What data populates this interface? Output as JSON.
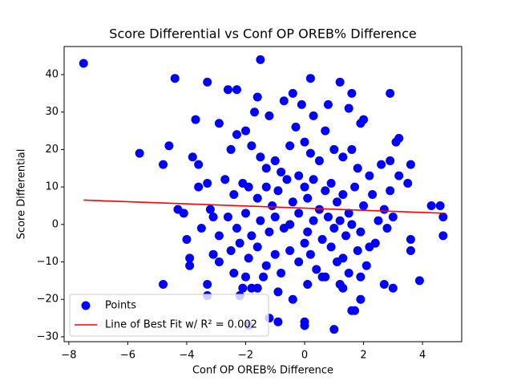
{
  "chart_data": {
    "type": "scatter",
    "title": "Score Differential vs Conf OP OREB% Difference",
    "xlabel": "Conf OP OREB% Difference",
    "ylabel": "Score Differential",
    "xlim": [
      -8.16,
      5.33
    ],
    "ylim": [
      -31.3,
      47.5
    ],
    "xticks": [
      {
        "value": -8,
        "label": "−8"
      },
      {
        "value": -6,
        "label": "−6"
      },
      {
        "value": -4,
        "label": "−4"
      },
      {
        "value": -2,
        "label": "−2"
      },
      0,
      2,
      4
    ],
    "yticks": [
      {
        "value": -30,
        "label": "−30"
      },
      {
        "value": -20,
        "label": "−20"
      },
      {
        "value": -10,
        "label": "−10"
      },
      0,
      10,
      20,
      30,
      40
    ],
    "legend": "lower left",
    "series": [
      {
        "name": "Points",
        "type": "scatter",
        "color": "#0000ff",
        "x": [
          -7.5,
          -1.5,
          -4.4,
          -3.3,
          0.2,
          1.2,
          2.9,
          -5.6,
          -4.8,
          -4.6,
          -4.8,
          -4.3,
          -4.1,
          -4,
          -3.9,
          -3.9,
          -3.3,
          -3.3,
          -2.2,
          -1.9,
          -1.2,
          -0.9,
          0,
          0,
          1,
          1.6,
          1.7,
          1.9,
          1.3,
          4.7,
          4.7,
          4.6,
          4.3,
          3.9,
          3.6,
          3.6,
          3.6,
          3.5,
          3.2,
          3.1,
          2.9,
          -3.7,
          -3.6,
          -3.8,
          -2.9,
          -2.6,
          -2.3,
          -1.6,
          -1.2,
          -0.4,
          -0.7,
          1.6,
          1.5,
          0.8,
          1.9,
          2.0,
          -3.3,
          -3.6,
          -3.2,
          -3.1,
          -2.9,
          -2.9,
          -3.1,
          -2.4,
          -2.1,
          -1.8,
          -1.6,
          -2.5,
          -2.3,
          -2,
          -1.8,
          -1.5,
          -1.3,
          -1,
          -0.8,
          -0.5,
          -0.3,
          0,
          0.2,
          0.5,
          0.7,
          1,
          1.3,
          1.6,
          1.8,
          2.2,
          2.6,
          -2.7,
          -2.4,
          -2.1,
          -1.9,
          -1.6,
          -1.3,
          -1.1,
          -0.9,
          -0.6,
          -0.4,
          -0.2,
          0,
          0.1,
          0.3,
          0.5,
          0.7,
          0.9,
          1.1,
          1.3,
          1.5,
          1.7,
          2,
          2.3,
          2.7,
          -2.6,
          -2.3,
          -2.0,
          -1.8,
          -1.5,
          -1.2,
          -1,
          -0.7,
          -0.5,
          -0.2,
          0.1,
          0.3,
          0.6,
          0.8,
          1,
          1.2,
          1.4,
          1.6,
          1.9,
          2.2,
          2.5,
          -2.5,
          -2.2,
          -1.9,
          -1.6,
          -1.3,
          -1,
          -0.8,
          -0.5,
          -0.2,
          0,
          0.2,
          0.4,
          0.6,
          0.9,
          1.1,
          1.3,
          1.5,
          1.8,
          2.1,
          2.4,
          -2.0,
          -1.4,
          -0.9,
          -0.4,
          0.1,
          0.7,
          1.2,
          1.9,
          2.7,
          3,
          2.9,
          3.2,
          3.0,
          2.8,
          -3.5,
          -1.7,
          0.3,
          -0.1
        ],
        "values": [
          43,
          44,
          39,
          38,
          39,
          38,
          35,
          19,
          16,
          21,
          -16,
          4,
          3,
          -4,
          -9,
          -11,
          -16,
          -19,
          -19,
          -27,
          -25,
          -26,
          -26,
          -27,
          -28,
          -23,
          -23,
          -20,
          -17,
          -3,
          2,
          5,
          5,
          -15,
          -4,
          -7,
          16,
          11,
          23,
          22,
          17,
          28,
          16,
          18,
          27,
          36,
          36,
          34,
          29,
          35,
          33,
          35,
          31,
          32,
          27,
          28,
          11,
          10,
          4,
          2,
          -3,
          -10,
          -8,
          -13,
          -17,
          -17,
          -17,
          20,
          24,
          25,
          21,
          18,
          15,
          17,
          14,
          21,
          26,
          22,
          19,
          17,
          25,
          20,
          18,
          20,
          15,
          13,
          16,
          12,
          8,
          11,
          10,
          7,
          10,
          5,
          9,
          12,
          6,
          13,
          10,
          7,
          12,
          4,
          9,
          11,
          6,
          8,
          3,
          10,
          5,
          8,
          4,
          2,
          -1,
          3,
          -3,
          1,
          -2,
          2,
          -1,
          0,
          3,
          -2,
          1,
          -4,
          2,
          -1,
          1,
          -3,
          0,
          -2,
          -6,
          1,
          -7,
          -5,
          -9,
          -6,
          -11,
          -8,
          -13,
          -7,
          -10,
          -5,
          -8,
          -12,
          -14,
          -6,
          -10,
          -9,
          -13,
          -7,
          -11,
          -5,
          -14,
          -14,
          -18,
          -20,
          -16,
          -14,
          -16,
          -14,
          -16,
          -17,
          9,
          13,
          2,
          -1,
          -1,
          30,
          29,
          32
        ]
      },
      {
        "name": "Line of Best Fit w/ R² = 0.002",
        "type": "line",
        "color": "#ff0000",
        "x": [
          -7.5,
          4.7
        ],
        "values": [
          6.5,
          3.0
        ]
      }
    ]
  }
}
